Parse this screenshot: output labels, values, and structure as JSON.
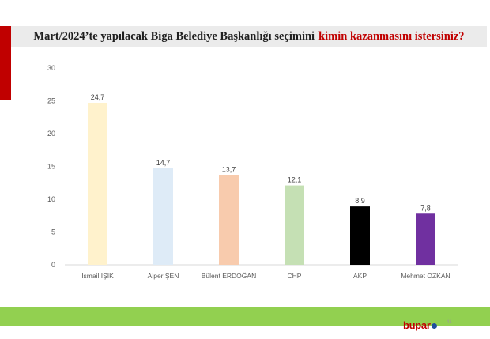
{
  "title": {
    "main": "Mart/2024’te yapılacak Biga Belediye Başkanlığı seçimini",
    "accent": "kimin kazanmasını istersiniz?"
  },
  "colors": {
    "accent_red": "#c00000",
    "footer_green": "#92d050"
  },
  "chart_data": {
    "type": "bar",
    "categories": [
      "İsmail IŞIK",
      "Alper ŞEN",
      "Bülent ERDOĞAN",
      "CHP",
      "AKP",
      "Mehmet ÖZKAN"
    ],
    "values": [
      24.7,
      14.7,
      13.7,
      12.1,
      8.9,
      7.8
    ],
    "value_labels": [
      "24,7",
      "14,7",
      "13,7",
      "12,1",
      "8,9",
      "7,8"
    ],
    "bar_colors": [
      "#fff2cc",
      "#deebf7",
      "#f8cbad",
      "#c5e0b4",
      "#000000",
      "#7030a0"
    ],
    "ylim": [
      0,
      30
    ],
    "yticks": [
      0,
      5,
      10,
      15,
      20,
      25,
      30
    ],
    "grid": false,
    "legend": "none"
  },
  "logo": {
    "text": "bupar"
  },
  "page_number": "41"
}
